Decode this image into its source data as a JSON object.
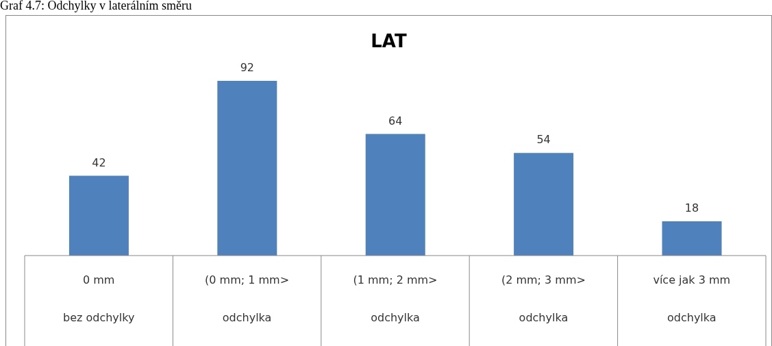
{
  "chart_data": {
    "type": "bar",
    "title": "LAT",
    "annotations": [
      "Graf 4.7: Odchylky v laterálním směru"
    ],
    "categories": [
      "0 mm\nbez odchylky",
      "(0 mm; 1 mm>\nodchylka",
      "(1 mm; 2 mm>\nodchylka",
      "(2 mm; 3 mm>\nodchylka",
      "více jak 3 mm\nodchylka"
    ],
    "values": [
      42,
      92,
      64,
      54,
      18
    ],
    "color": "#4f81bd",
    "data_labels": true,
    "grid": false,
    "legend": false
  }
}
